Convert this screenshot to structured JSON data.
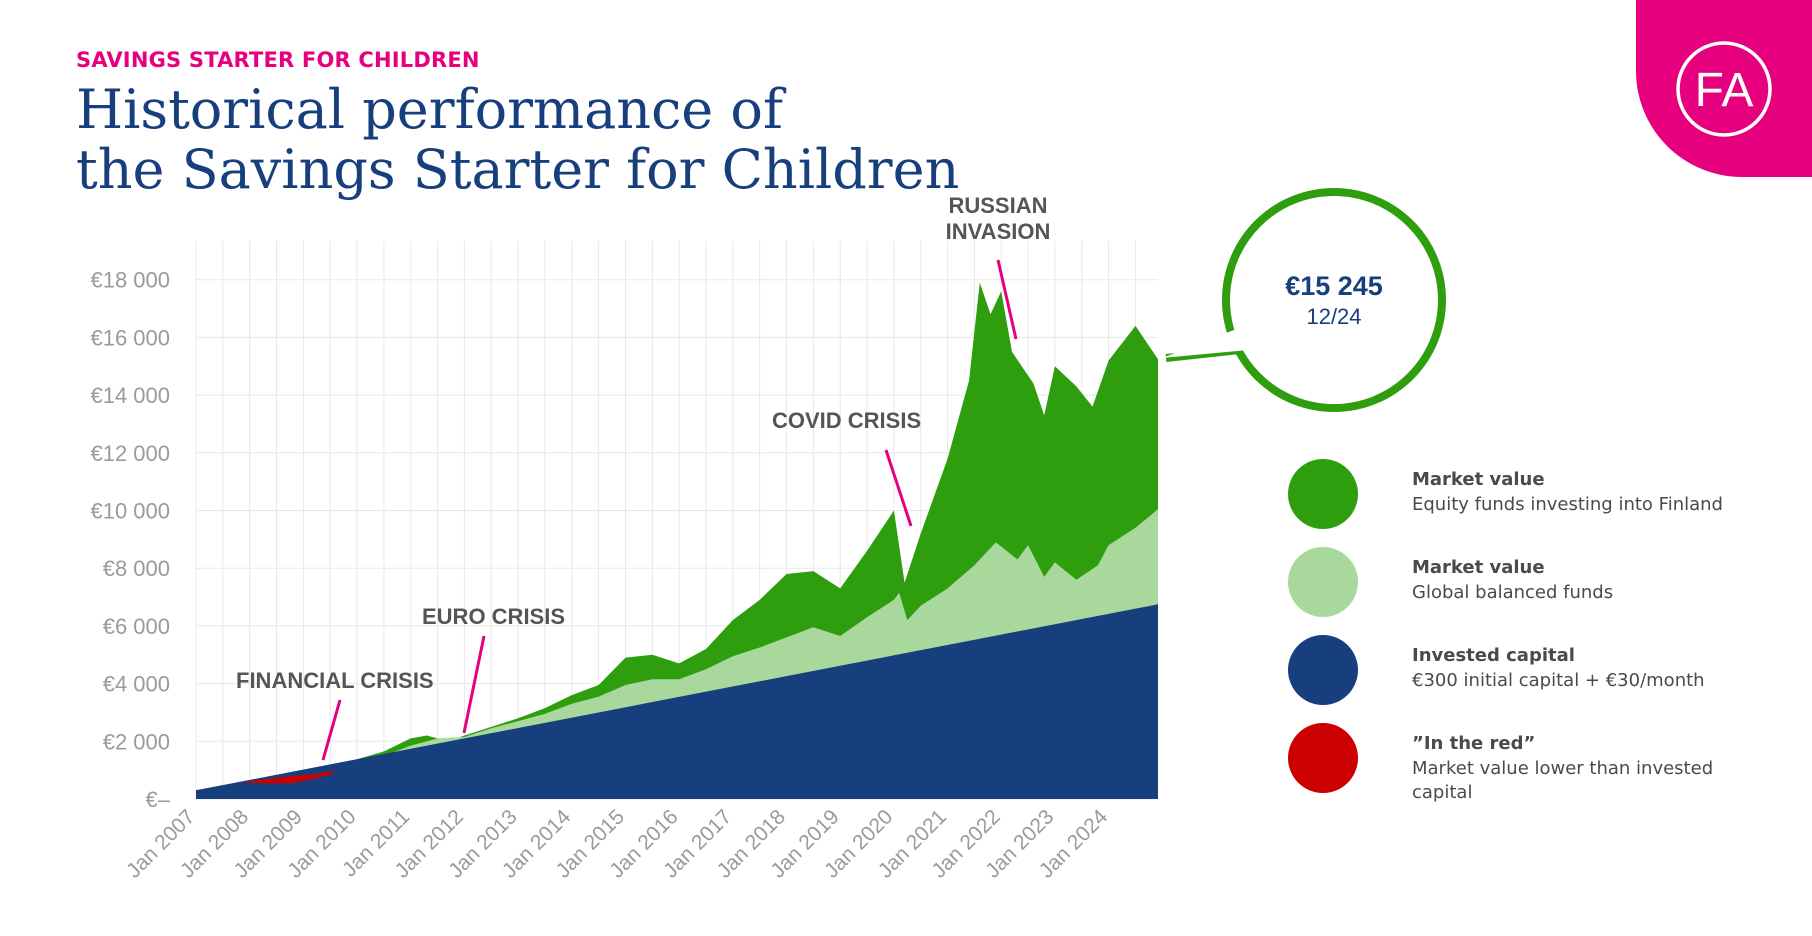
{
  "header": {
    "eyebrow": "SAVINGS STARTER FOR CHILDREN",
    "title_line1": "Historical performance of",
    "title_line2": "the Savings Starter for Children"
  },
  "logo": {
    "text": "FA",
    "color": "#e6007e"
  },
  "callout": {
    "value": "€15 245",
    "date": "12/24"
  },
  "legend": [
    {
      "title": "Market value",
      "desc": "Equity funds investing into Finland",
      "color": "#2e9e0e"
    },
    {
      "title": "Market value",
      "desc": "Global balanced funds",
      "color": "#a8d89c"
    },
    {
      "title": "Invested capital",
      "desc": "€300 initial capital  + €30/month",
      "color": "#173f7d"
    },
    {
      "title": "”In the red”",
      "desc": "Market value lower than invested capital",
      "color": "#cc0000"
    }
  ],
  "chart_data": {
    "type": "area",
    "x_tick_labels": [
      "Jan 2007",
      "Jan 2008",
      "Jan 2009",
      "Jan 2010",
      "Jan 2011",
      "Jan 2012",
      "Jan 2013",
      "Jan 2014",
      "Jan 2015",
      "Jan 2016",
      "Jan 2017",
      "Jan 2018",
      "Jan 2019",
      "Jan 2020",
      "Jan 2021",
      "Jan 2022",
      "Jan 2023",
      "Jan 2024"
    ],
    "y_tick_labels": [
      "€–",
      "€2 000",
      "€4 000",
      "€6 000",
      "€8 000",
      "€10 000",
      "€12 000",
      "€14 000",
      "€16 000",
      "€18 000"
    ],
    "ylim": [
      0,
      19000
    ],
    "x_range": [
      "2007-01",
      "2024-12"
    ],
    "grid": true,
    "annotations": [
      {
        "label": "FINANCIAL CRISIS",
        "x": 2009.3,
        "y": 1300
      },
      {
        "label": "EURO CRISIS",
        "x": 2011.8,
        "y": 2300
      },
      {
        "label": "COVID CRISIS",
        "x": 2020.1,
        "y": 9400
      },
      {
        "label": "RUSSIAN INVASION",
        "x": 2022.1,
        "y": 15900
      }
    ],
    "series": [
      {
        "name": "Invested capital",
        "color": "#173f7d",
        "points": [
          [
            2007.0,
            300
          ],
          [
            2024.92,
            6750
          ]
        ]
      },
      {
        "name": "Market value — Global balanced funds",
        "color": "#a8d89c",
        "points": [
          [
            2007.0,
            300
          ],
          [
            2007.5,
            470
          ],
          [
            2008.0,
            560
          ],
          [
            2008.5,
            570
          ],
          [
            2009.0,
            560
          ],
          [
            2009.5,
            900
          ],
          [
            2010.0,
            1350
          ],
          [
            2010.5,
            1500
          ],
          [
            2011.0,
            1850
          ],
          [
            2011.5,
            2100
          ],
          [
            2012.0,
            2150
          ],
          [
            2012.5,
            2450
          ],
          [
            2013.0,
            2700
          ],
          [
            2013.5,
            2950
          ],
          [
            2014.0,
            3300
          ],
          [
            2014.5,
            3550
          ],
          [
            2015.0,
            3950
          ],
          [
            2015.5,
            4150
          ],
          [
            2016.0,
            4150
          ],
          [
            2016.5,
            4500
          ],
          [
            2017.0,
            4950
          ],
          [
            2017.5,
            5250
          ],
          [
            2018.0,
            5600
          ],
          [
            2018.5,
            5950
          ],
          [
            2019.0,
            5650
          ],
          [
            2019.5,
            6300
          ],
          [
            2020.0,
            6900
          ],
          [
            2020.1,
            7150
          ],
          [
            2020.25,
            6200
          ],
          [
            2020.5,
            6700
          ],
          [
            2021.0,
            7300
          ],
          [
            2021.5,
            8100
          ],
          [
            2021.9,
            8900
          ],
          [
            2022.3,
            8300
          ],
          [
            2022.5,
            8800
          ],
          [
            2022.8,
            7700
          ],
          [
            2023.0,
            8200
          ],
          [
            2023.4,
            7600
          ],
          [
            2023.8,
            8100
          ],
          [
            2024.0,
            8800
          ],
          [
            2024.5,
            9400
          ],
          [
            2024.92,
            10050
          ]
        ]
      },
      {
        "name": "Market value — Equity funds investing into Finland",
        "color": "#2e9e0e",
        "points": [
          [
            2007.0,
            300
          ],
          [
            2007.5,
            480
          ],
          [
            2008.0,
            580
          ],
          [
            2008.5,
            580
          ],
          [
            2009.0,
            560
          ],
          [
            2009.5,
            920
          ],
          [
            2010.0,
            1380
          ],
          [
            2010.5,
            1650
          ],
          [
            2011.0,
            2100
          ],
          [
            2011.3,
            2200
          ],
          [
            2011.7,
            2000
          ],
          [
            2012.0,
            2200
          ],
          [
            2012.5,
            2500
          ],
          [
            2013.0,
            2800
          ],
          [
            2013.5,
            3150
          ],
          [
            2014.0,
            3600
          ],
          [
            2014.5,
            3950
          ],
          [
            2015.0,
            4900
          ],
          [
            2015.5,
            5000
          ],
          [
            2016.0,
            4700
          ],
          [
            2016.5,
            5200
          ],
          [
            2017.0,
            6200
          ],
          [
            2017.5,
            6900
          ],
          [
            2018.0,
            7800
          ],
          [
            2018.5,
            7900
          ],
          [
            2019.0,
            7300
          ],
          [
            2019.5,
            8600
          ],
          [
            2020.0,
            10000
          ],
          [
            2020.2,
            7500
          ],
          [
            2020.5,
            9200
          ],
          [
            2021.0,
            11800
          ],
          [
            2021.4,
            14500
          ],
          [
            2021.6,
            17900
          ],
          [
            2021.8,
            16800
          ],
          [
            2022.0,
            17600
          ],
          [
            2022.2,
            15500
          ],
          [
            2022.6,
            14400
          ],
          [
            2022.8,
            13300
          ],
          [
            2023.0,
            15000
          ],
          [
            2023.4,
            14300
          ],
          [
            2023.7,
            13600
          ],
          [
            2024.0,
            15200
          ],
          [
            2024.5,
            16400
          ],
          [
            2024.92,
            15245
          ]
        ]
      }
    ]
  }
}
